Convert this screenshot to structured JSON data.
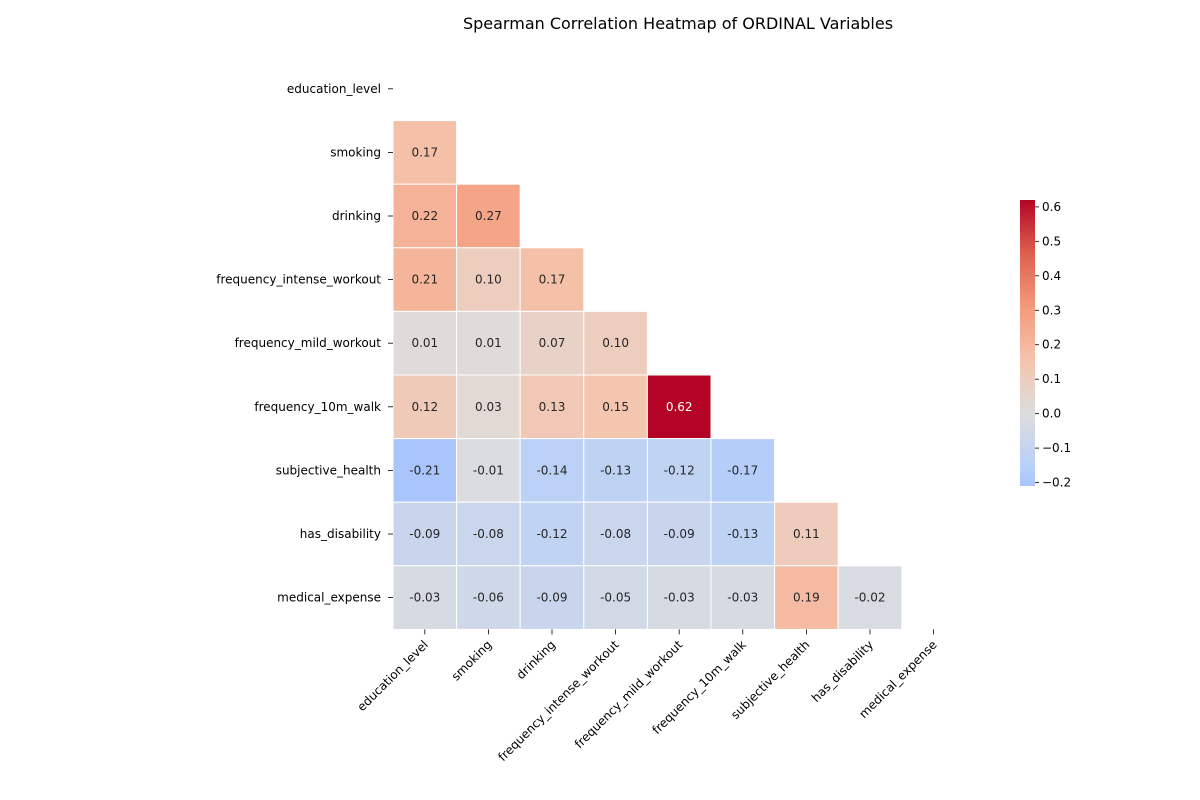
{
  "chart_data": {
    "type": "heatmap",
    "title": "Spearman Correlation Heatmap of ORDINAL Variables",
    "variables": [
      "education_level",
      "smoking",
      "drinking",
      "frequency_intense_workout",
      "frequency_mild_workout",
      "frequency_10m_walk",
      "subjective_health",
      "has_disability",
      "medical_expense"
    ],
    "mask": "upper-triangle-and-diagonal",
    "matrix": [
      [
        null,
        null,
        null,
        null,
        null,
        null,
        null,
        null,
        null
      ],
      [
        0.17,
        null,
        null,
        null,
        null,
        null,
        null,
        null,
        null
      ],
      [
        0.22,
        0.27,
        null,
        null,
        null,
        null,
        null,
        null,
        null
      ],
      [
        0.21,
        0.1,
        0.17,
        null,
        null,
        null,
        null,
        null,
        null
      ],
      [
        0.01,
        0.01,
        0.07,
        0.1,
        null,
        null,
        null,
        null,
        null
      ],
      [
        0.12,
        0.03,
        0.13,
        0.15,
        0.62,
        null,
        null,
        null,
        null
      ],
      [
        -0.21,
        -0.01,
        -0.14,
        -0.13,
        -0.12,
        -0.17,
        null,
        null,
        null
      ],
      [
        -0.09,
        -0.08,
        -0.12,
        -0.08,
        -0.09,
        -0.13,
        0.11,
        null,
        null
      ],
      [
        -0.03,
        -0.06,
        -0.09,
        -0.05,
        -0.03,
        -0.03,
        0.19,
        -0.02,
        null
      ]
    ],
    "annotation_format": "0.00",
    "colormap": "coolwarm",
    "center": 0,
    "vmin": -0.21,
    "vmax": 0.62,
    "colorbar": {
      "ticks": [
        -0.2,
        -0.1,
        0.0,
        0.1,
        0.2,
        0.3,
        0.4,
        0.5,
        0.6
      ],
      "tick_labels": [
        "−0.2",
        "−0.1",
        "0.0",
        "0.1",
        "0.2",
        "0.3",
        "0.4",
        "0.5",
        "0.6"
      ],
      "placement": "right"
    }
  }
}
